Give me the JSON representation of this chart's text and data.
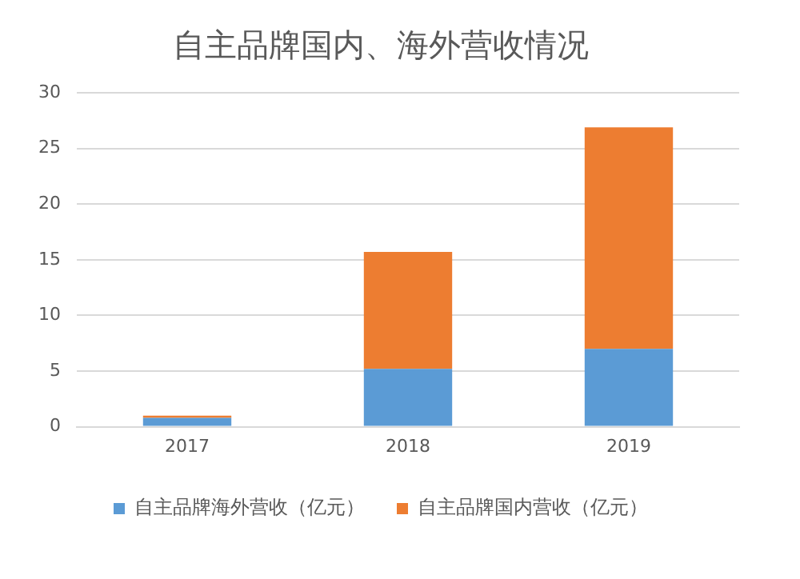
{
  "chart_data": {
    "type": "bar",
    "title": "自主品牌国内、海外营收情况",
    "categories": [
      "2017",
      "2018",
      "2019"
    ],
    "stacked": true,
    "series": [
      {
        "name": "自主品牌海外营收（亿元）",
        "color": "#5b9bd5",
        "values": [
          0.8,
          5.2,
          7.0
        ]
      },
      {
        "name": "自主品牌国内营收（亿元）",
        "color": "#ed7d31",
        "values": [
          0.2,
          10.5,
          19.9
        ]
      }
    ],
    "ylim": [
      0,
      30
    ],
    "yticks": [
      0,
      5,
      10,
      15,
      20,
      25,
      30
    ],
    "grid": "y",
    "legend": "bottom"
  }
}
